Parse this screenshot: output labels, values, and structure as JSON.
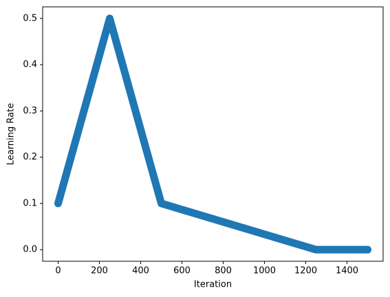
{
  "chart_data": {
    "type": "line",
    "x_label": "Iteration",
    "y_label": "Learning Rate",
    "x": [
      0,
      250,
      500,
      1250,
      1500
    ],
    "series": [
      {
        "color": "#1f77b4",
        "values": [
          0.1,
          0.5,
          0.1,
          0,
          0
        ]
      }
    ],
    "xlim": [
      -75,
      1575
    ],
    "ylim": [
      -0.025,
      0.525
    ],
    "xticks": [
      0,
      200,
      400,
      600,
      800,
      1000,
      1200,
      1400
    ],
    "yticks": [
      {
        "value": 0,
        "label": "0.0"
      },
      0.1,
      0.2,
      0.3,
      0.4,
      0.5
    ],
    "grid": false
  }
}
